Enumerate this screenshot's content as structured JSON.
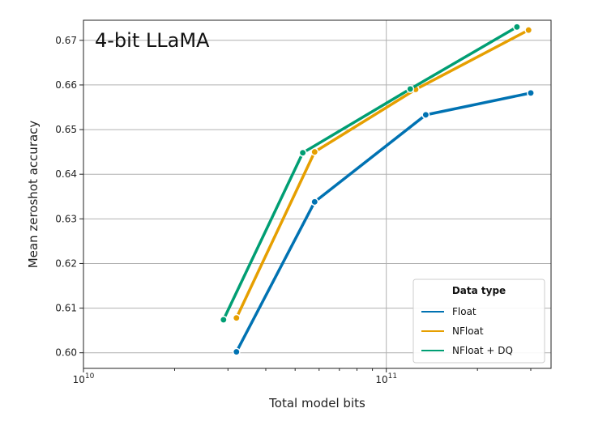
{
  "chart_data": {
    "type": "line",
    "title": "4-bit LLaMA",
    "xlabel": "Total model bits",
    "ylabel": "Mean zeroshot accuracy",
    "xscale": "log",
    "xlim": [
      10000000000.0,
      350000000000.0
    ],
    "ylim": [
      0.5965,
      0.6745
    ],
    "xticks": [
      {
        "value": 10000000000.0,
        "base": "10",
        "exp": "10"
      },
      {
        "value": 100000000000.0,
        "base": "10",
        "exp": "11"
      }
    ],
    "yticks": [
      0.6,
      0.61,
      0.62,
      0.63,
      0.64,
      0.65,
      0.66,
      0.67
    ],
    "ytick_labels": [
      "0.60",
      "0.61",
      "0.62",
      "0.63",
      "0.64",
      "0.65",
      "0.66",
      "0.67"
    ],
    "grid": true,
    "legend": {
      "title": "Data type",
      "position": "bottom-right"
    },
    "series": [
      {
        "name": "Float",
        "color": "#0072B2",
        "x": [
          32000000000.0,
          58000000000.0,
          135000000000.0,
          300000000000.0
        ],
        "y": [
          0.6002,
          0.6338,
          0.6533,
          0.6582
        ]
      },
      {
        "name": "NFloat",
        "color": "#E69F00",
        "x": [
          32000000000.0,
          58000000000.0,
          125000000000.0,
          295000000000.0
        ],
        "y": [
          0.6078,
          0.645,
          0.659,
          0.6723
        ]
      },
      {
        "name": "NFloat + DQ",
        "color": "#009E73",
        "x": [
          29000000000.0,
          53000000000.0,
          120000000000.0,
          270000000000.0
        ],
        "y": [
          0.6074,
          0.6448,
          0.6591,
          0.673
        ]
      }
    ]
  }
}
